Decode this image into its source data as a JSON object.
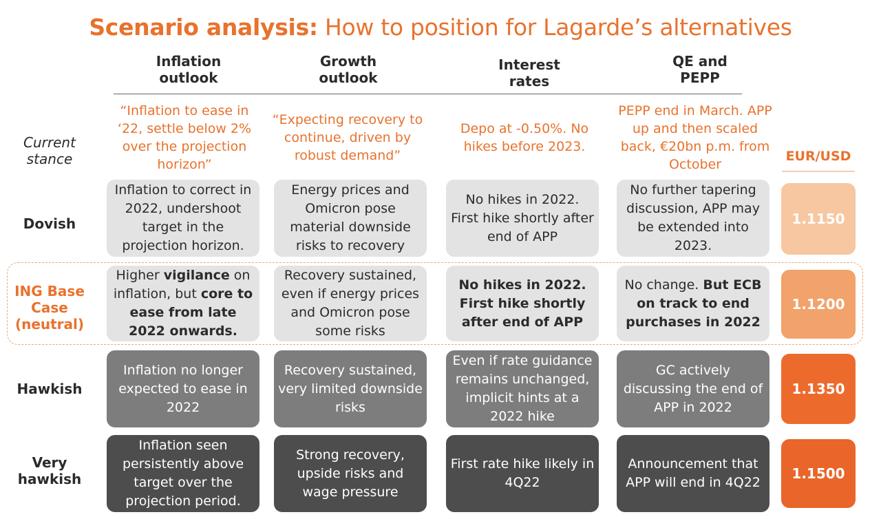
{
  "title": {
    "bold": "Scenario analysis:",
    "rest": " How to position for Lagarde’s alternatives"
  },
  "columns": [
    {
      "line1": "Inflation",
      "line2": "outlook"
    },
    {
      "line1": "Growth",
      "line2": "outlook"
    },
    {
      "line1": "Interest",
      "line2": "rates"
    },
    {
      "line1": "QE and",
      "line2": "PEPP"
    }
  ],
  "current_stance": {
    "label_line1": "Current",
    "label_line2": "stance",
    "cells": [
      "“Inflation to ease in ‘22, settle below 2% over the projection horizon”",
      "“Expecting recovery to continue, driven by robust demand”",
      "Depo at -0.50%. No hikes before 2023.",
      "PEPP end in March. APP up and then scaled back, €20bn p.m. from October"
    ]
  },
  "eurusd_header": "EUR/USD",
  "rows": [
    {
      "label": "Dovish",
      "eurusd": "1.1150",
      "cells": [
        "Inflation to correct in 2022, undershoot target in the projection horizon.",
        "Energy prices and Omicron pose material downside risks to recovery",
        "No hikes in 2022. First hike shortly after end of APP",
        "No further tapering discussion, APP may be extended into 2023."
      ]
    },
    {
      "label_line1": "ING Base",
      "label_line2": "Case",
      "label_line3": "(neutral)",
      "eurusd": "1.1200",
      "cells": {
        "c1_a": "Higher ",
        "c1_b": "vigilance",
        "c1_c": " on inflation, but ",
        "c1_d": "core to ease from late 2022 onwards.",
        "c2": "Recovery sustained, even if energy prices and Omicron pose some risks",
        "c3": "No hikes in 2022. First hike shortly after end of APP",
        "c4_a": "No change. ",
        "c4_b": "But ECB on track to end purchases in 2022"
      }
    },
    {
      "label": "Hawkish",
      "eurusd": "1.1350",
      "cells": [
        "Inflation no longer expected to ease in 2022",
        "Recovery sustained, very limited downside risks",
        "Even if rate guidance remains unchanged, implicit hints at a 2022 hike",
        "GC actively discussing the end of APP in 2022"
      ]
    },
    {
      "label_line1": "Very",
      "label_line2": "hawkish",
      "eurusd": "1.1500",
      "cells": [
        "Inflation seen persistently above target over the projection period.",
        "Strong recovery, upside risks and wage pressure",
        "First rate hike likely in 4Q22",
        "Announcement that APP will end in 4Q22"
      ]
    }
  ],
  "colors": {
    "accent": "#e8722d",
    "eur_dovish": "#f7c7a1",
    "eur_base": "#f2a26b",
    "eur_hawkish": "#ec6b2c",
    "eur_very_hawkish": "#e9652a"
  }
}
